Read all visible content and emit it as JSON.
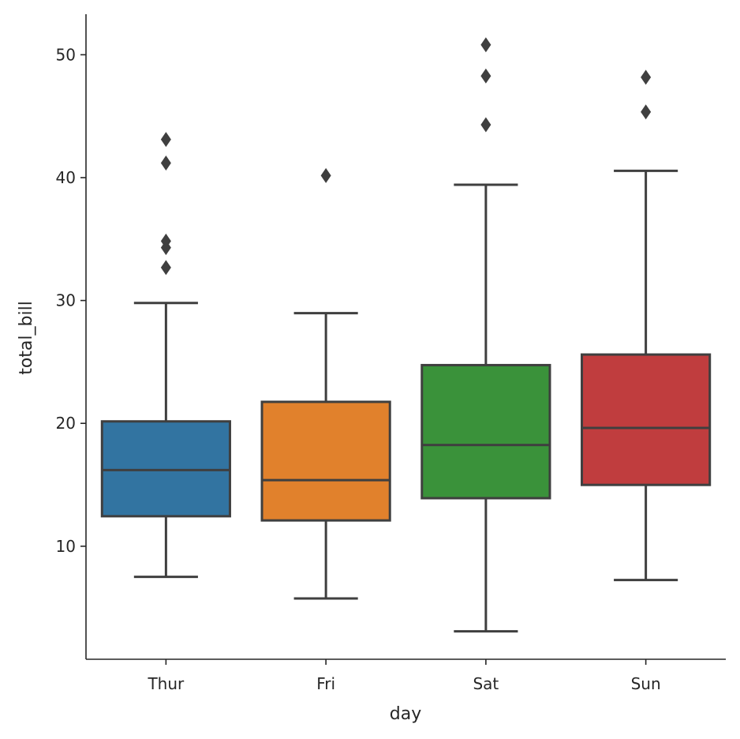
{
  "chart_data": {
    "type": "box",
    "xlabel": "day",
    "ylabel": "total_bill",
    "categories": [
      "Thur",
      "Fri",
      "Sat",
      "Sun"
    ],
    "yticks": [
      10,
      20,
      30,
      40,
      50
    ],
    "ylim": [
      0.8,
      53.3
    ],
    "grid": false,
    "boxes": [
      {
        "category": "Thur",
        "whisker_low": 7.51,
        "q1": 12.44,
        "median": 16.2,
        "q3": 20.16,
        "whisker_high": 29.8,
        "outliers": [
          32.68,
          34.3,
          34.83,
          41.19,
          43.11
        ],
        "color": "#3274a1"
      },
      {
        "category": "Fri",
        "whisker_low": 5.75,
        "q1": 12.1,
        "median": 15.38,
        "q3": 21.75,
        "whisker_high": 28.97,
        "outliers": [
          40.17
        ],
        "color": "#e1812c"
      },
      {
        "category": "Sat",
        "whisker_low": 3.07,
        "q1": 13.91,
        "median": 18.24,
        "q3": 24.74,
        "whisker_high": 39.42,
        "outliers": [
          44.3,
          48.27,
          50.81
        ],
        "color": "#3a923a"
      },
      {
        "category": "Sun",
        "whisker_low": 7.25,
        "q1": 14.99,
        "median": 19.63,
        "q3": 25.6,
        "whisker_high": 40.55,
        "outliers": [
          45.35,
          48.17
        ],
        "color": "#c03d3e"
      }
    ],
    "line_color": "#3f3f3f"
  }
}
